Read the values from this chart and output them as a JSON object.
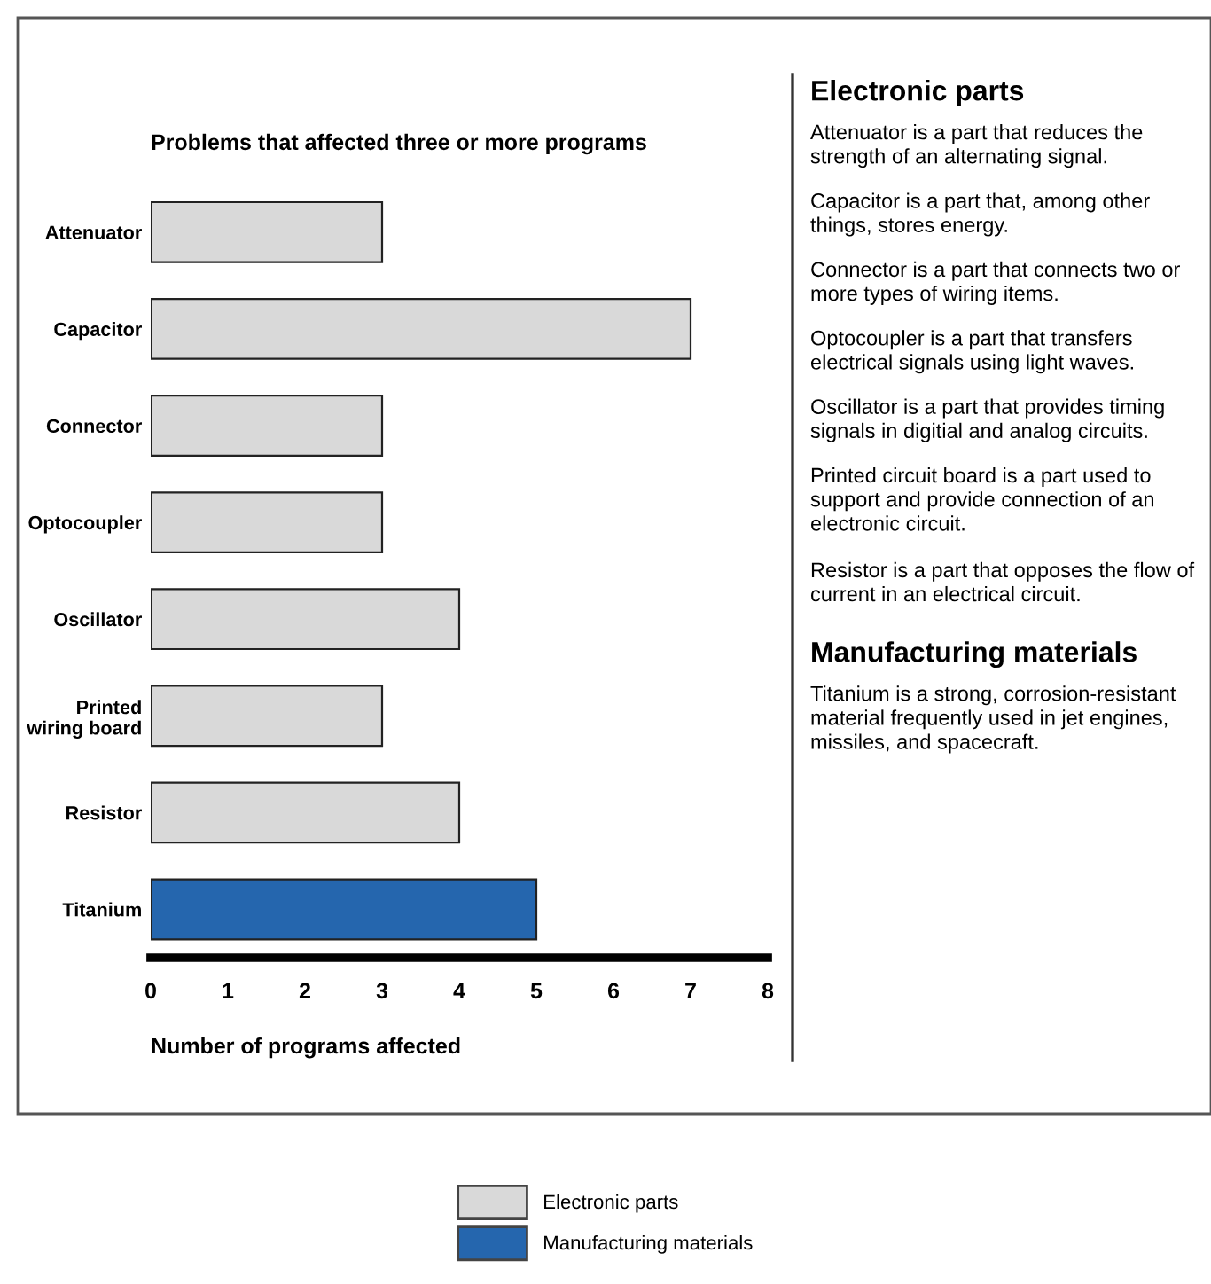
{
  "chart_data": [
    {
      "type": "bar",
      "orientation": "horizontal",
      "title": "Problems that affected three or more programs",
      "xlabel": "Number of programs affected",
      "categories": [
        "Attenuator",
        "Capacitor",
        "Connector",
        "Optocoupler",
        "Oscillator",
        "Printed\nwiring board",
        "Resistor",
        "Titanium"
      ],
      "series": [
        {
          "name": "Electronic parts",
          "color": "#d9d9d9",
          "values": [
            3,
            7,
            3,
            3,
            4,
            3,
            4,
            null
          ]
        },
        {
          "name": "Manufacturing materials",
          "color": "#2566ae",
          "values": [
            null,
            null,
            null,
            null,
            null,
            null,
            null,
            5
          ]
        }
      ],
      "xlim": [
        0,
        8
      ],
      "xticks": [
        0,
        1,
        2,
        3,
        4,
        5,
        6,
        7,
        8
      ],
      "grid": false,
      "legend": "bottom"
    },
    {
      "type": "other",
      "title": "Electronic parts",
      "annotations": [
        "Attenuator is a part that reduces the strength of an alternating signal.",
        "Capacitor is a part that, among other things, stores energy.",
        "Connector is a part that connects two or more types of wiring items.",
        "Optocoupler is a part that transfers electrical signals using light waves.",
        "Oscillator is a part that provides timing signals in digitial and analog circuits.",
        "Printed circuit board is a part used to support and provide connection of an electronic circuit.",
        "Resistor is a part that opposes the flow of current in an electrical circuit."
      ]
    },
    {
      "type": "other",
      "title": "Manufacturing materials",
      "annotations": [
        "Titanium is a strong, corrosion-resistant material frequently used in jet engines, missiles, and spacecraft."
      ]
    }
  ]
}
